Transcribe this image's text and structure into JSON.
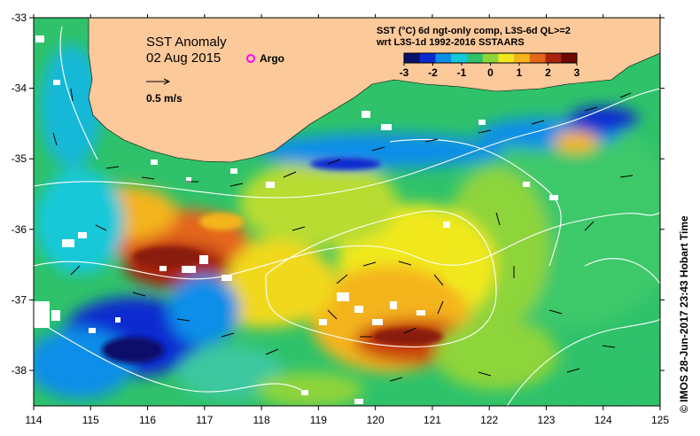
{
  "map": {
    "title": "SST Anomaly",
    "date": "02 Aug 2015",
    "legend_argo": "Argo",
    "vector_scale_label": "0.5 m/s",
    "colorbar_title_line1": "SST (°C) 6d ngt-only comp, L3S-6d QL>=2",
    "colorbar_title_line2": "wrt L3S-1d 1992-2016 SSTAARS",
    "colorbar_ticks": [
      "-3",
      "-2",
      "-1",
      "0",
      "1",
      "2",
      "3"
    ],
    "colorbar_colors": [
      "#08106a",
      "#0a2ad0",
      "#0a8ee8",
      "#13c8d8",
      "#2fc26a",
      "#8ed43a",
      "#f0e81c",
      "#f4b41c",
      "#e4661a",
      "#a8240e",
      "#6e0a06"
    ],
    "lon_ticks": [
      "114",
      "115",
      "116",
      "117",
      "118",
      "119",
      "120",
      "121",
      "122",
      "123",
      "124",
      "125"
    ],
    "lat_ticks": [
      "-33",
      "-34",
      "-35",
      "-36",
      "-37",
      "-38"
    ],
    "credit": "© IMOS 28-Jun-2017 23:43 Hobart Time",
    "land_color": "#fcc99a",
    "argo_color": "#ff00ff"
  }
}
